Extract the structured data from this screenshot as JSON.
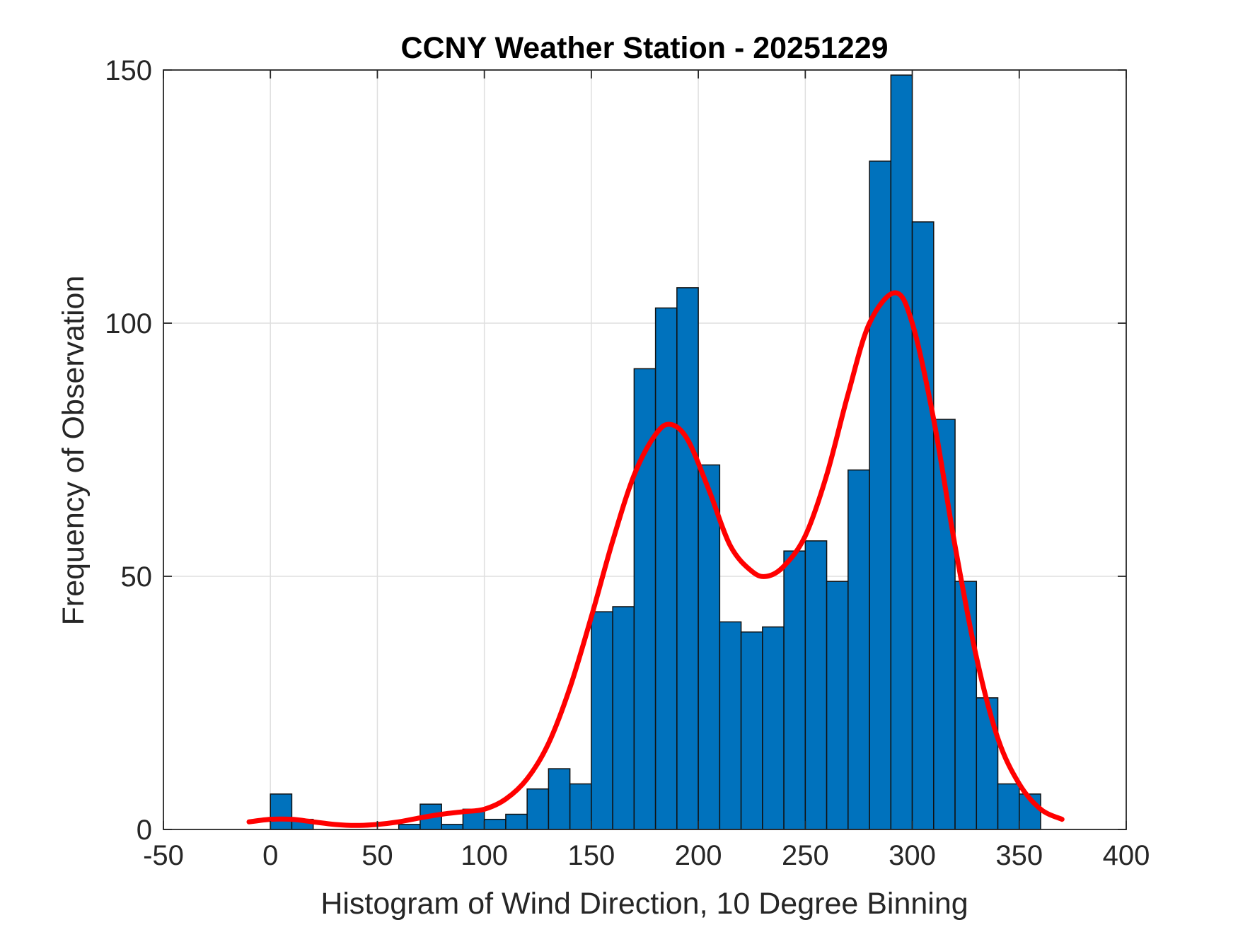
{
  "chart_data": {
    "type": "bar",
    "title": "CCNY Weather Station - 20251229",
    "xlabel": "Histogram of Wind Direction, 10 Degree Binning",
    "ylabel": "Frequency of Observation",
    "xlim": [
      -50,
      400
    ],
    "ylim": [
      0,
      150
    ],
    "xticks": [
      -50,
      0,
      50,
      100,
      150,
      200,
      250,
      300,
      350,
      400
    ],
    "yticks": [
      0,
      50,
      100,
      150
    ],
    "grid": true,
    "bin_width": 10,
    "bin_edges_start": [
      0,
      10,
      20,
      30,
      40,
      50,
      60,
      70,
      80,
      90,
      100,
      110,
      120,
      130,
      140,
      150,
      160,
      170,
      180,
      190,
      200,
      210,
      220,
      230,
      240,
      250,
      260,
      270,
      280,
      290,
      300,
      310,
      320,
      330,
      340,
      350
    ],
    "values": [
      7,
      2,
      0,
      0,
      0,
      0,
      1,
      5,
      1,
      4,
      2,
      3,
      8,
      12,
      9,
      43,
      44,
      91,
      103,
      107,
      72,
      41,
      39,
      40,
      55,
      57,
      49,
      71,
      132,
      149,
      120,
      81,
      49,
      26,
      9,
      7
    ],
    "bar_color": "#0072BD",
    "fit_curve": {
      "color": "#FF0000",
      "x": [
        -10,
        0,
        10,
        20,
        30,
        40,
        50,
        60,
        70,
        80,
        90,
        100,
        110,
        120,
        130,
        140,
        150,
        160,
        170,
        180,
        187,
        195,
        205,
        215,
        225,
        232,
        240,
        250,
        260,
        270,
        280,
        292,
        300,
        310,
        320,
        330,
        340,
        350,
        360,
        370
      ],
      "y": [
        1.5,
        2,
        2,
        1.5,
        1,
        0.8,
        1,
        1.5,
        2.3,
        3,
        3.5,
        4,
        6,
        10,
        17,
        28,
        42,
        57,
        70,
        78,
        80,
        77,
        67,
        56,
        51,
        50,
        52,
        58,
        70,
        86,
        100,
        106,
        100,
        81,
        56,
        34,
        18,
        9,
        4,
        2
      ]
    }
  }
}
